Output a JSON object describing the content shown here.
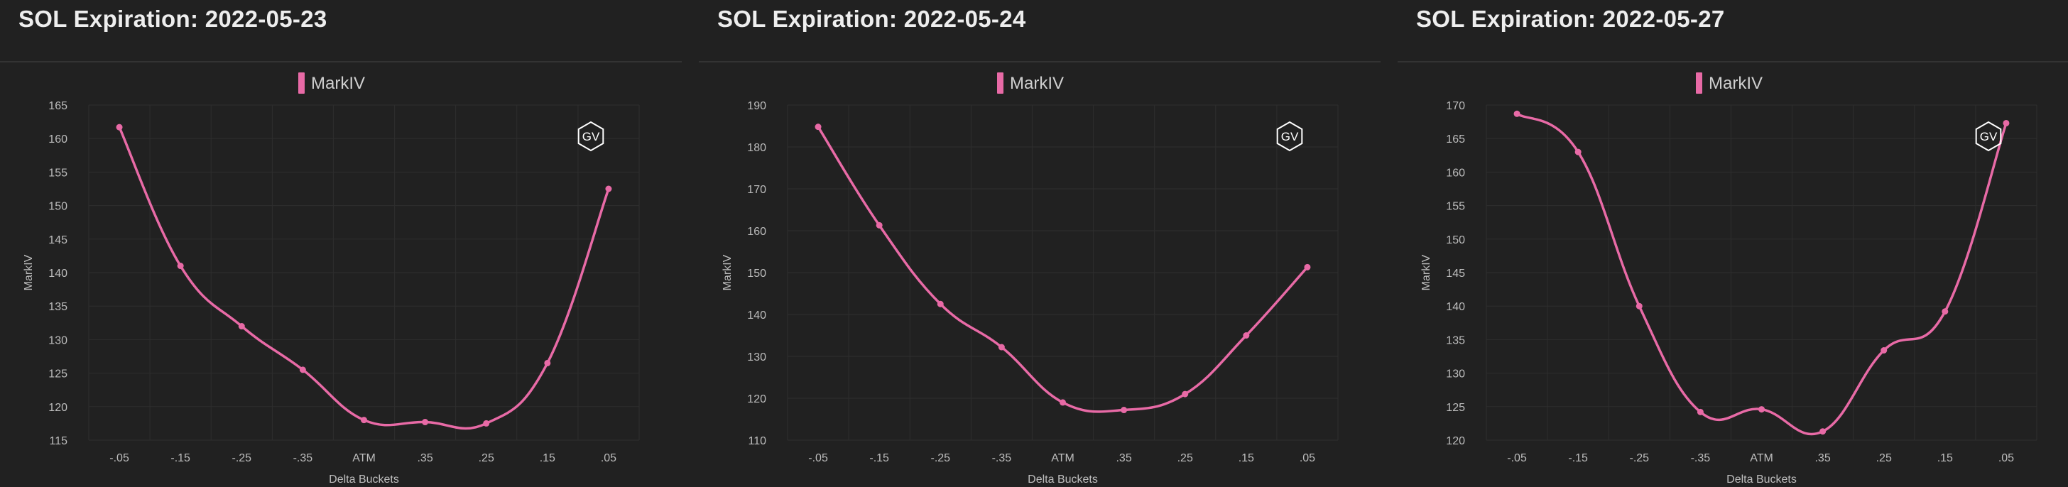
{
  "page": {
    "background": "#212121"
  },
  "colors": {
    "series": "#e86aa6",
    "grid": "#2e2e2e",
    "text": "#bdbdbd",
    "badge": "#ffffff"
  },
  "badge": {
    "icon": "gv-hexagon-icon",
    "label": "GV"
  },
  "panels": [
    {
      "title": "SOL Expiration: 2022-05-23",
      "chart_data": {
        "type": "line",
        "title": "SOL Expiration: 2022-05-23",
        "categories": [
          "-.05",
          "-.15",
          "-.25",
          "-.35",
          "ATM",
          ".35",
          ".25",
          ".15",
          ".05"
        ],
        "series": [
          {
            "name": "MarkIV",
            "values": [
              161.7,
              141,
              132,
              125.5,
              118,
              117.7,
              117.5,
              126.5,
              152.5
            ]
          }
        ],
        "xlabel": "Delta Buckets",
        "ylabel": "MarkIV",
        "ylim": [
          115,
          165
        ],
        "yticks": [
          115,
          120,
          125,
          130,
          135,
          140,
          145,
          150,
          155,
          160,
          165
        ],
        "grid": true,
        "legend": "top-center"
      }
    },
    {
      "title": "SOL Expiration: 2022-05-24",
      "chart_data": {
        "type": "line",
        "title": "SOL Expiration: 2022-05-24",
        "categories": [
          "-.05",
          "-.15",
          "-.25",
          "-.35",
          "ATM",
          ".35",
          ".25",
          ".15",
          ".05"
        ],
        "series": [
          {
            "name": "MarkIV",
            "values": [
              184.8,
              161.3,
              142.5,
              132.2,
              119,
              117.2,
              121,
              135,
              151.3
            ]
          }
        ],
        "xlabel": "Delta Buckets",
        "ylabel": "MarkIV",
        "ylim": [
          110,
          190
        ],
        "yticks": [
          110,
          120,
          130,
          140,
          150,
          160,
          170,
          180,
          190
        ],
        "grid": true,
        "legend": "top-center"
      }
    },
    {
      "title": "SOL Expiration: 2022-05-27",
      "chart_data": {
        "type": "line",
        "title": "SOL Expiration: 2022-05-27",
        "categories": [
          "-.05",
          "-.15",
          "-.25",
          "-.35",
          "ATM",
          ".35",
          ".25",
          ".15",
          ".05"
        ],
        "series": [
          {
            "name": "MarkIV",
            "values": [
              168.7,
              163,
              140,
              124.2,
              124.6,
              121.3,
              133.4,
              139.2,
              167.3
            ]
          }
        ],
        "xlabel": "Delta Buckets",
        "ylabel": "MarkIV",
        "ylim": [
          120,
          170
        ],
        "yticks": [
          120,
          125,
          130,
          135,
          140,
          145,
          150,
          155,
          160,
          165,
          170
        ],
        "grid": true,
        "legend": "top-center"
      }
    }
  ]
}
